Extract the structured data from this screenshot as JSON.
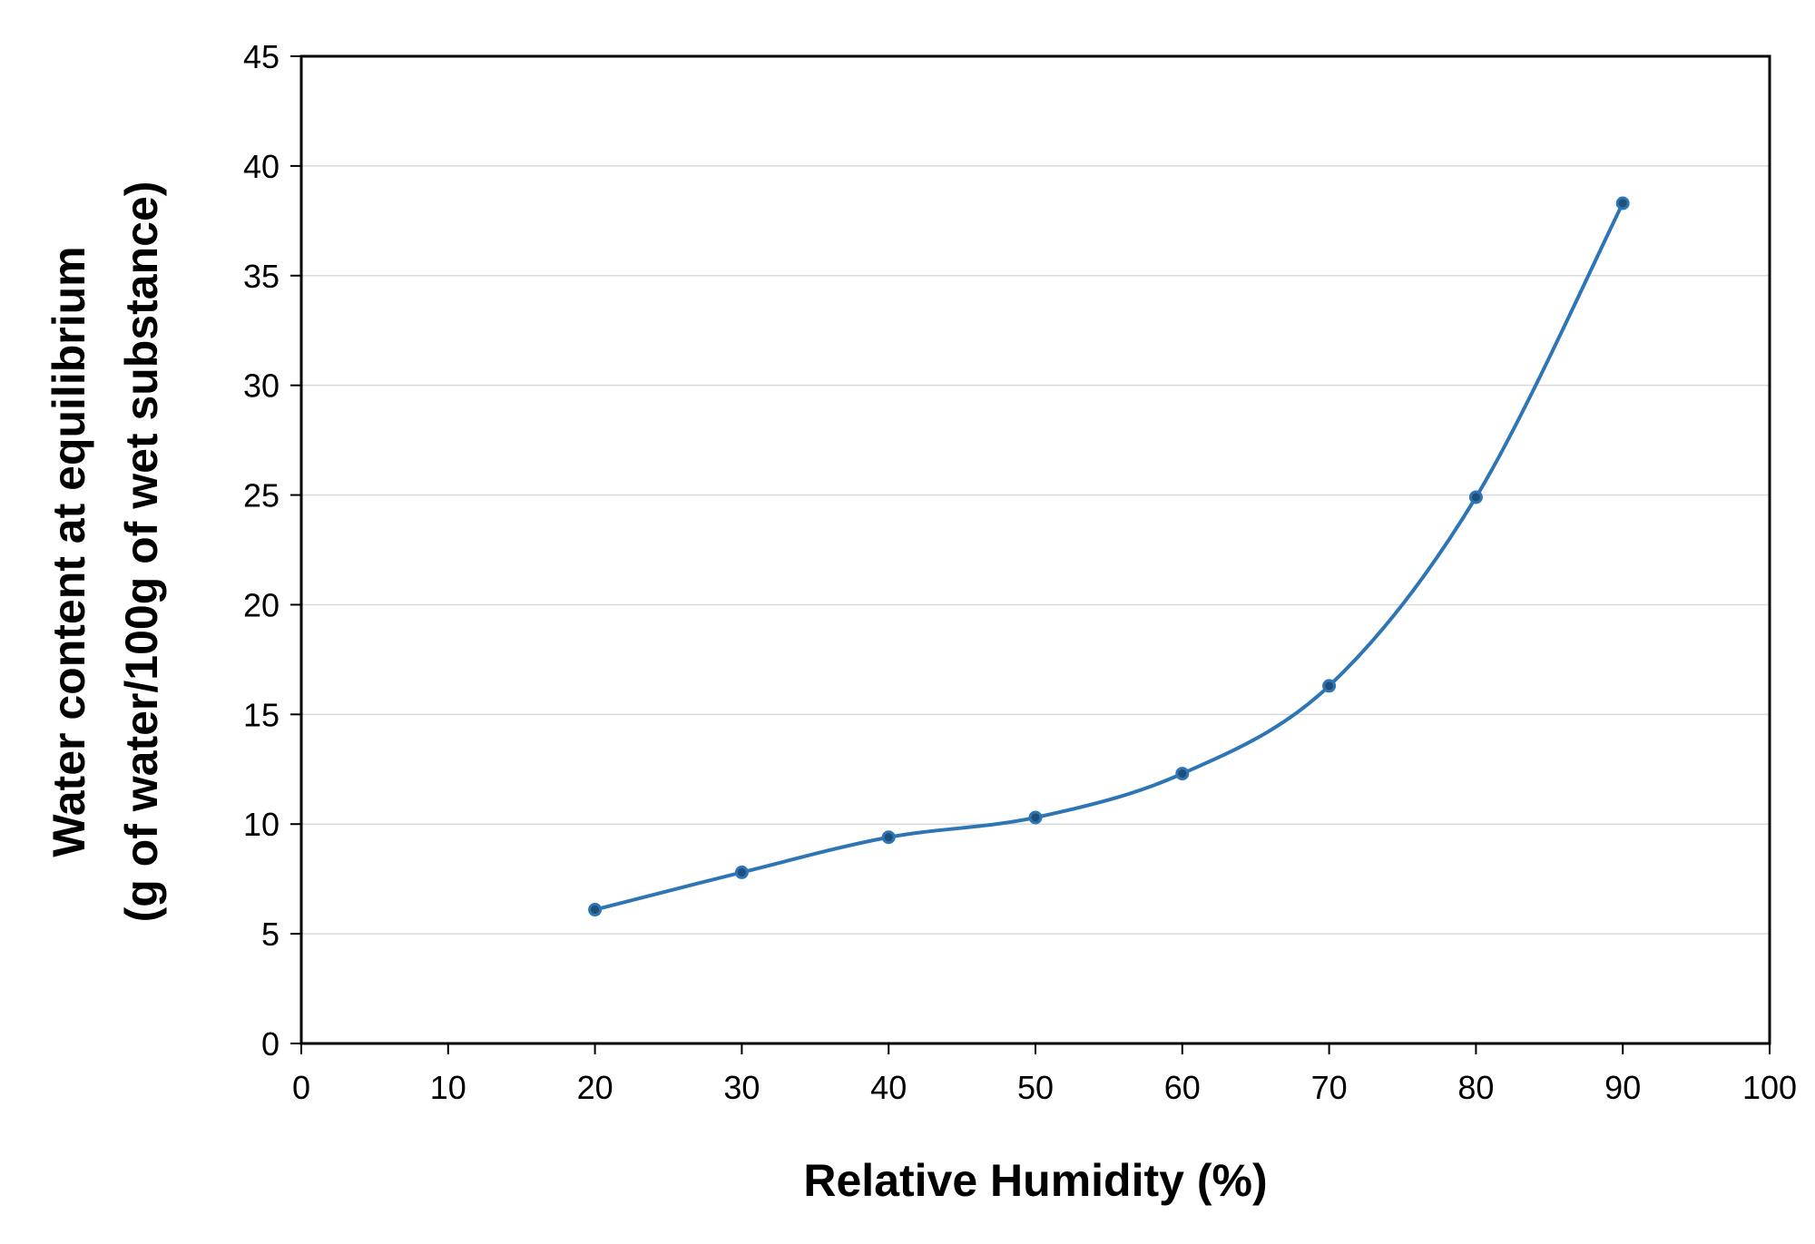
{
  "chart_data": {
    "type": "line",
    "title": "",
    "xlabel": "Relative Humidity (%)",
    "ylabel_line1": "Water content at equilibrium",
    "ylabel_line2": "(g of water/100g of wet substance)",
    "xlim": [
      0,
      100
    ],
    "ylim": [
      0,
      45
    ],
    "x_ticks": [
      0,
      10,
      20,
      30,
      40,
      50,
      60,
      70,
      80,
      90,
      100
    ],
    "y_ticks": [
      0,
      5,
      10,
      15,
      20,
      25,
      30,
      35,
      40,
      45
    ],
    "grid": "horizontal",
    "legend": "none",
    "series": [
      {
        "x": [
          20,
          30,
          40,
          50,
          60,
          70,
          80,
          90
        ],
        "y": [
          6.1,
          7.8,
          9.4,
          10.3,
          12.3,
          16.3,
          24.9,
          38.3
        ],
        "color": "#2e75b6",
        "smooth": true,
        "markers": true
      }
    ]
  }
}
